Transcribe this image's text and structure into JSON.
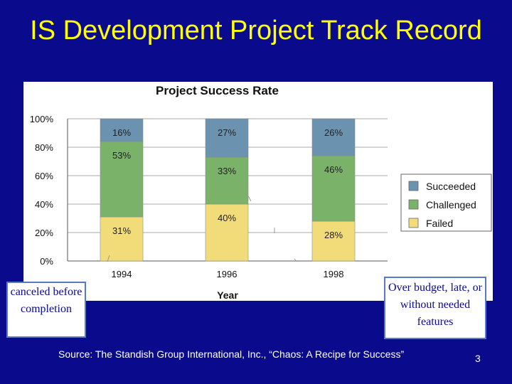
{
  "slide": {
    "title": "IS Development Project Track Record",
    "source": "Source: The Standish Group International, Inc., “Chaos: A Recipe for Success”",
    "page_number": "3"
  },
  "callouts": {
    "left": "canceled before completion",
    "right": "Over budget, late, or without needed features"
  },
  "colors": {
    "background": "#0a0a8c",
    "title": "#ffff00",
    "succeeded": "#6b93b0",
    "challenged": "#7bb26a",
    "failed": "#f2dc7a"
  },
  "chart_data": {
    "type": "bar",
    "stacked": true,
    "title": "Project Success Rate",
    "xlabel": "Year",
    "ylabel": "",
    "categories": [
      "1994",
      "1996",
      "1998"
    ],
    "ylim": [
      0,
      100
    ],
    "y_ticks": [
      "0%",
      "20%",
      "40%",
      "60%",
      "80%",
      "100%"
    ],
    "grid": true,
    "legend_position": "right",
    "series": [
      {
        "name": "Failed",
        "values": [
          31,
          40,
          28
        ],
        "labels": [
          "31%",
          "40%",
          "28%"
        ],
        "color": "#f2dc7a"
      },
      {
        "name": "Challenged",
        "values": [
          53,
          33,
          46
        ],
        "labels": [
          "53%",
          "33%",
          "46%"
        ],
        "color": "#7bb26a"
      },
      {
        "name": "Succeeded",
        "values": [
          16,
          27,
          26
        ],
        "labels": [
          "16%",
          "27%",
          "26%"
        ],
        "color": "#6b93b0"
      }
    ],
    "legend_order": [
      "Succeeded",
      "Challenged",
      "Failed"
    ]
  }
}
